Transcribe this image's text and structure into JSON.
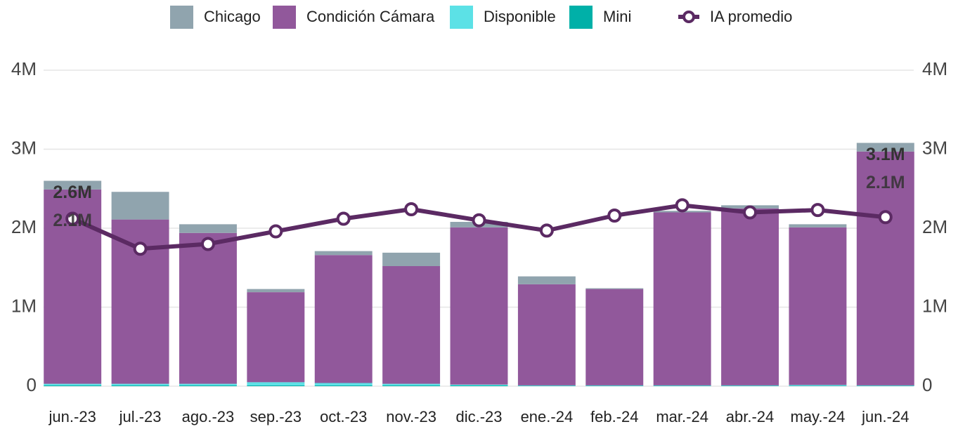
{
  "chart_data": {
    "type": "bar",
    "stacked": true,
    "categories": [
      "jun.-23",
      "jul.-23",
      "ago.-23",
      "sep.-23",
      "oct.-23",
      "nov.-23",
      "dic.-23",
      "ene.-24",
      "feb.-24",
      "mar.-24",
      "abr.-24",
      "may.-24",
      "jun.-24"
    ],
    "series": [
      {
        "name": "Mini",
        "color": "#00b0a8",
        "values": [
          10000,
          10000,
          10000,
          10000,
          10000,
          10000,
          10000,
          5000,
          5000,
          5000,
          5000,
          5000,
          5000
        ]
      },
      {
        "name": "Disponible",
        "color": "#5ce1e6",
        "values": [
          20000,
          20000,
          20000,
          40000,
          30000,
          20000,
          10000,
          5000,
          5000,
          5000,
          5000,
          10000,
          5000
        ]
      },
      {
        "name": "Condición Cámara",
        "color": "#91589b",
        "values": [
          2460000,
          2080000,
          1910000,
          1140000,
          1620000,
          1490000,
          1990000,
          1280000,
          1220000,
          2190000,
          2240000,
          1995000,
          2960000
        ]
      },
      {
        "name": "Chicago",
        "color": "#90a4ae",
        "values": [
          110000,
          350000,
          110000,
          40000,
          50000,
          170000,
          70000,
          100000,
          10000,
          20000,
          40000,
          40000,
          110000
        ]
      },
      {
        "name": "IA promedio",
        "type": "line",
        "axis": "y2",
        "color": "#5b2a63",
        "values": [
          2120000,
          1740000,
          1800000,
          1960000,
          2120000,
          2240000,
          2100000,
          1970000,
          2160000,
          2290000,
          2200000,
          2230000,
          2140000
        ],
        "value_labels": [
          "2.1M",
          null,
          null,
          null,
          null,
          null,
          null,
          null,
          null,
          null,
          null,
          null,
          "2.1M"
        ]
      }
    ],
    "legend_order": [
      "Chicago",
      "Condición Cámara",
      "Disponible",
      "Mini",
      "IA promedio"
    ],
    "annotations": [
      {
        "x": "jun.-23",
        "text": "2.6M"
      },
      {
        "x": "jun.-24",
        "text": "3.1M"
      }
    ],
    "ylim": [
      0,
      4000000
    ],
    "yticks": [
      0,
      {
        "value": 1000000,
        "label": "1M"
      },
      {
        "value": 2000000,
        "label": "2M"
      },
      {
        "value": 3000000,
        "label": "3M"
      },
      {
        "value": 4000000,
        "label": "4M"
      }
    ],
    "y2lim": [
      0,
      4000000
    ],
    "y2ticks": [
      0,
      {
        "value": 1000000,
        "label": "1M"
      },
      {
        "value": 2000000,
        "label": "2M"
      },
      {
        "value": 3000000,
        "label": "3M"
      },
      {
        "value": 4000000,
        "label": "4M"
      }
    ],
    "grid": true,
    "legend": "top"
  }
}
